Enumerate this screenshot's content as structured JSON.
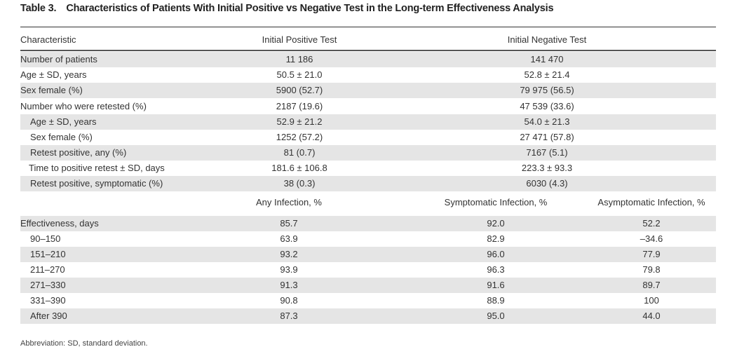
{
  "title": {
    "number": "Table 3.",
    "text": "Characteristics of Patients With Initial Positive vs Negative Test in the Long-term Effectiveness Analysis"
  },
  "table1": {
    "headers": [
      "Characteristic",
      "Initial Positive Test",
      "Initial Negative Test"
    ],
    "rows": [
      [
        "Number of patients",
        "11 186",
        "141 470"
      ],
      [
        "Age ± SD, years",
        "50.5 ± 21.0",
        "52.8 ± 21.4"
      ],
      [
        "Sex female (%)",
        "5900 (52.7)",
        "79 975 (56.5)"
      ],
      [
        "Number who were retested (%)",
        "2187 (19.6)",
        "47 539 (33.6)"
      ],
      [
        "Age ± SD, years",
        "52.9 ± 21.2",
        "54.0 ± 21.3"
      ],
      [
        "Sex female (%)",
        "1252 (57.2)",
        "27 471 (57.8)"
      ],
      [
        "Retest positive, any (%)",
        "81 (0.7)",
        "7167 (5.1)"
      ],
      [
        "Time to positive retest ± SD, days",
        "181.6 ± 106.8",
        "223.3 ± 93.3"
      ],
      [
        "Retest positive, symptomatic (%)",
        "38 (0.3)",
        "6030 (4.3)"
      ]
    ]
  },
  "table2": {
    "headers": [
      "",
      "Any Infection, %",
      "Symptomatic Infection, %",
      "Asymptomatic Infection, %"
    ],
    "rows": [
      [
        "Effectiveness, days",
        "85.7",
        "92.0",
        "52.2"
      ],
      [
        "90–150",
        "63.9",
        "82.9",
        "–34.6"
      ],
      [
        "151–210",
        "93.2",
        "96.0",
        "77.9"
      ],
      [
        "211–270",
        "93.9",
        "96.3",
        "79.8"
      ],
      [
        "271–330",
        "91.3",
        "91.6",
        "89.7"
      ],
      [
        "331–390",
        "90.8",
        "88.9",
        "100"
      ],
      [
        "After 390",
        "87.3",
        "95.0",
        "44.0"
      ]
    ]
  },
  "footnote": "Abbreviation: SD, standard deviation."
}
